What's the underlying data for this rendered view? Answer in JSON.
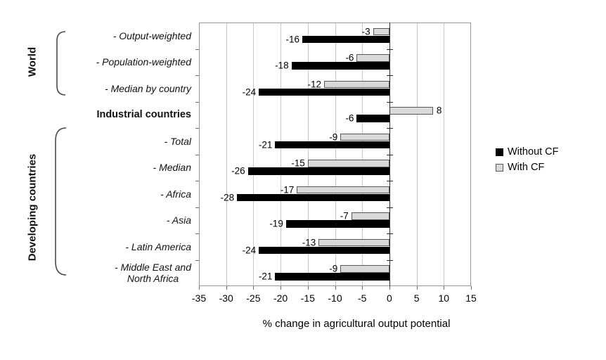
{
  "chart_data": {
    "type": "bar",
    "orientation": "horizontal",
    "title": "",
    "xlabel": "% change in agricultural output potential",
    "xlim": [
      -35,
      15
    ],
    "xticks": [
      -35,
      -30,
      -25,
      -20,
      -15,
      -10,
      -5,
      0,
      5,
      10,
      15
    ],
    "grid": true,
    "legend_position": "right",
    "categories": [
      {
        "lines": [
          "- Output-weighted"
        ],
        "style": "italic"
      },
      {
        "lines": [
          "- Population-weighted"
        ],
        "style": "italic"
      },
      {
        "lines": [
          "- Median by country"
        ],
        "style": "italic"
      },
      {
        "lines": [
          "Industrial countries"
        ],
        "style": "bold"
      },
      {
        "lines": [
          "- Total"
        ],
        "style": "italic"
      },
      {
        "lines": [
          "- Median"
        ],
        "style": "italic"
      },
      {
        "lines": [
          "- Africa"
        ],
        "style": "italic"
      },
      {
        "lines": [
          "- Asia"
        ],
        "style": "italic"
      },
      {
        "lines": [
          "- Latin America"
        ],
        "style": "italic"
      },
      {
        "lines": [
          "- Middle East and",
          "North Africa"
        ],
        "style": "italic"
      }
    ],
    "series": [
      {
        "name": "Without CF",
        "color": "#000000",
        "border_color": "#000000",
        "values": [
          -16,
          -18,
          -24,
          -6,
          -21,
          -26,
          -28,
          -19,
          -24,
          -21
        ]
      },
      {
        "name": "With CF",
        "color": "#d9d9d9",
        "border_color": "#595959",
        "values": [
          -3,
          -6,
          -12,
          8,
          -9,
          -15,
          -17,
          -7,
          -13,
          -9
        ]
      }
    ],
    "groups": [
      {
        "label": "World",
        "first_row": 0,
        "last_row": 2
      },
      {
        "label": "Developing countries",
        "first_row": 4,
        "last_row": 9
      }
    ],
    "colors": {
      "gridline": "#c9c9c9",
      "plot_border": "#979797",
      "zero_axis": "#2b2b2b",
      "text": "#000000"
    }
  }
}
